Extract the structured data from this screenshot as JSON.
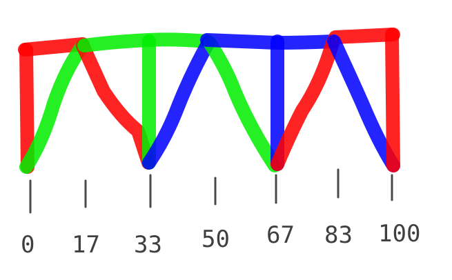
{
  "diagram": {
    "axis": {
      "ticks": [
        "0",
        "17",
        "33",
        "50",
        "67",
        "83",
        "100"
      ]
    },
    "colors": {
      "red": "#ff0000",
      "green": "#00ee00",
      "blue": "#0000ff",
      "tick": "#4a4a4a"
    },
    "segments": [
      {
        "color": "red",
        "kind": "vertical",
        "at": "0"
      },
      {
        "color": "red",
        "kind": "top",
        "from": "0",
        "to": "17"
      },
      {
        "color": "green",
        "kind": "diagonal",
        "from": "0",
        "to": "17"
      },
      {
        "color": "red",
        "kind": "diagonal",
        "from": "17",
        "to": "33"
      },
      {
        "color": "green",
        "kind": "top",
        "from": "17",
        "to": "50"
      },
      {
        "color": "green",
        "kind": "vertical",
        "at": "33"
      },
      {
        "color": "blue",
        "kind": "diagonal",
        "from": "33",
        "to": "50"
      },
      {
        "color": "green",
        "kind": "diagonal",
        "from": "50",
        "to": "67"
      },
      {
        "color": "blue",
        "kind": "top",
        "from": "50",
        "to": "83"
      },
      {
        "color": "blue",
        "kind": "vertical",
        "at": "67"
      },
      {
        "color": "red",
        "kind": "diagonal",
        "from": "67",
        "to": "83"
      },
      {
        "color": "red",
        "kind": "top",
        "from": "83",
        "to": "100"
      },
      {
        "color": "blue",
        "kind": "diagonal",
        "from": "83",
        "to": "100"
      },
      {
        "color": "red",
        "kind": "vertical",
        "at": "100"
      }
    ]
  }
}
